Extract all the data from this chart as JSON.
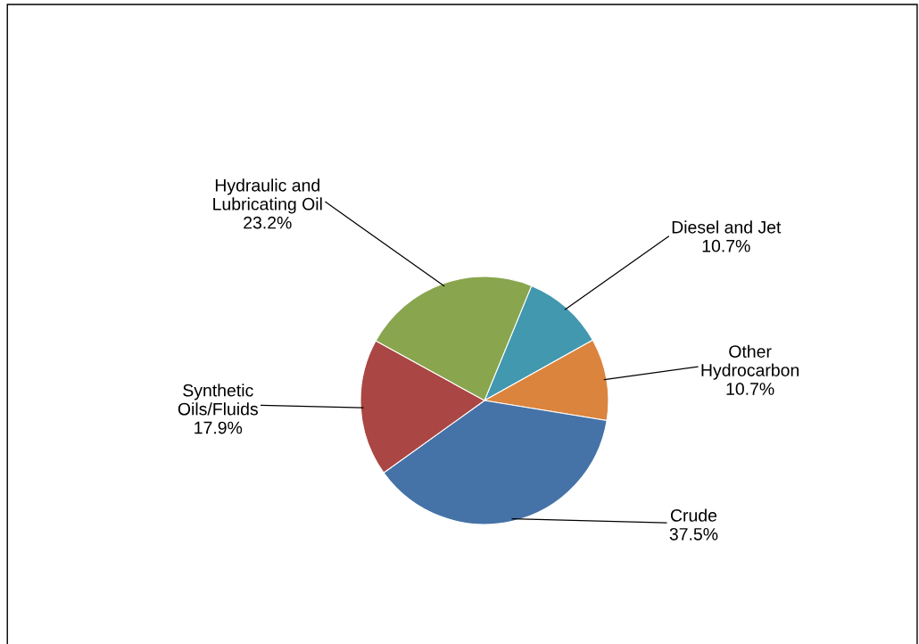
{
  "chart_data": {
    "type": "pie",
    "categories": [
      "Diesel and Jet",
      "Other\nHydrocarbon",
      "Crude",
      "Synthetic\nOils/Fluids",
      "Hydraulic and\nLubricating Oil"
    ],
    "values": [
      10.7,
      10.7,
      37.5,
      17.9,
      23.2
    ],
    "value_labels": [
      "10.7%",
      "10.7%",
      "37.5%",
      "17.9%",
      "23.2%"
    ],
    "colors": [
      "#4198af",
      "#db843d",
      "#4572a7",
      "#aa4643",
      "#89a54e"
    ],
    "legend": false
  }
}
